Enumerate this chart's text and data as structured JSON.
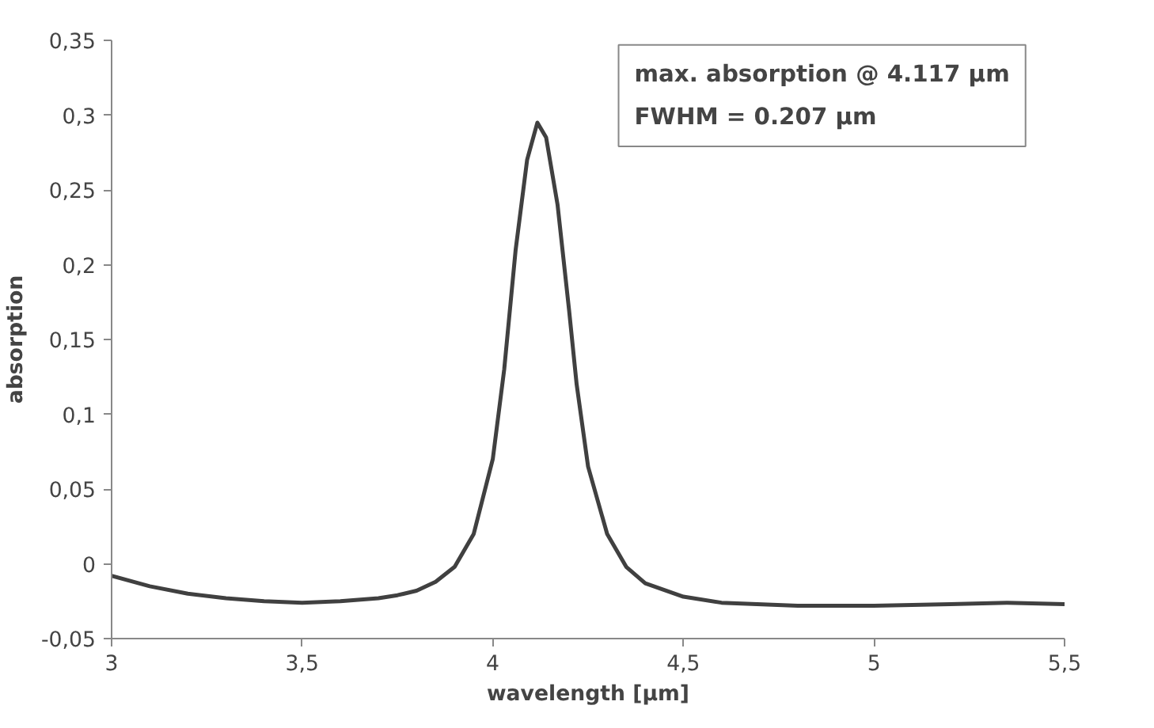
{
  "chart_data": {
    "type": "line",
    "xlabel": "wavelength [µm]",
    "ylabel": "absorption",
    "annotations": [
      "max. absorption @ 4.117 µm",
      "FWHM = 0.207 µm"
    ],
    "x": [
      3.0,
      3.1,
      3.2,
      3.3,
      3.4,
      3.5,
      3.6,
      3.7,
      3.75,
      3.8,
      3.85,
      3.9,
      3.95,
      4.0,
      4.03,
      4.06,
      4.09,
      4.117,
      4.14,
      4.17,
      4.2,
      4.22,
      4.25,
      4.3,
      4.35,
      4.4,
      4.5,
      4.6,
      4.8,
      5.0,
      5.2,
      5.35,
      5.5
    ],
    "series": [
      {
        "color": "#404040",
        "values": [
          -0.008,
          -0.015,
          -0.02,
          -0.023,
          -0.025,
          -0.026,
          -0.025,
          -0.023,
          -0.021,
          -0.018,
          -0.012,
          -0.002,
          0.02,
          0.07,
          0.13,
          0.21,
          0.27,
          0.295,
          0.285,
          0.24,
          0.17,
          0.12,
          0.065,
          0.02,
          -0.002,
          -0.013,
          -0.022,
          -0.026,
          -0.028,
          -0.028,
          -0.027,
          -0.026,
          -0.027
        ]
      }
    ],
    "xlim": [
      3,
      5.5
    ],
    "ylim": [
      -0.05,
      0.35
    ],
    "xticks": [
      3,
      {
        "value": 3.5,
        "label": "3,5"
      },
      4,
      {
        "value": 4.5,
        "label": "4,5"
      },
      5,
      {
        "value": 5.5,
        "label": "5,5"
      }
    ],
    "yticks": [
      {
        "value": -0.05,
        "label": "-0,05"
      },
      0,
      {
        "value": 0.05,
        "label": "0,05"
      },
      {
        "value": 0.1,
        "label": "0,1"
      },
      {
        "value": 0.15,
        "label": "0,15"
      },
      {
        "value": 0.2,
        "label": "0,2"
      },
      {
        "value": 0.25,
        "label": "0,25"
      },
      {
        "value": 0.3,
        "label": "0,3"
      },
      {
        "value": 0.35,
        "label": "0,35"
      }
    ],
    "grid": false,
    "marker": "none",
    "line_style": "solid"
  }
}
